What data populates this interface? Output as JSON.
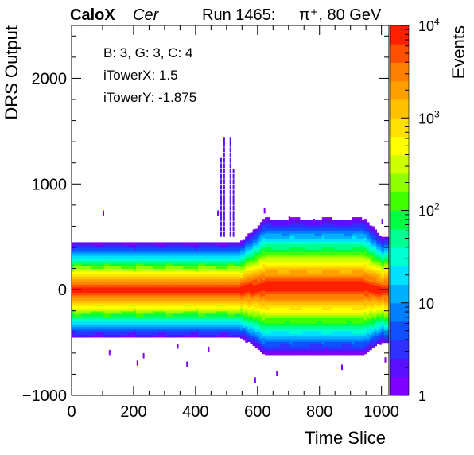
{
  "header": {
    "experiment": "CaloX",
    "channel": "Cer",
    "run": "Run 1465:",
    "beam": "π⁺, 80 GeV"
  },
  "info_box": [
    "B: 3, G: 3, C: 4",
    "iTowerX: 1.5",
    "iTowerY: -1.875"
  ],
  "chart_data": {
    "type": "heatmap",
    "xlabel": "Time Slice",
    "ylabel": "DRS Output",
    "zlabel": "Events",
    "xlim": [
      0,
      1024
    ],
    "ylim": [
      -1000,
      2500
    ],
    "zlim": [
      1,
      10000
    ],
    "z_scale": "log",
    "x_ticks": [
      "0",
      "200",
      "400",
      "600",
      "800",
      "1000"
    ],
    "y_ticks": [
      "−1000",
      "0",
      "1000",
      "2000"
    ],
    "z_ticks": [
      {
        "base": "1",
        "exp": ""
      },
      {
        "base": "10",
        "exp": ""
      },
      {
        "base": "10",
        "exp": "2"
      },
      {
        "base": "10",
        "exp": "3"
      },
      {
        "base": "10",
        "exp": "4"
      }
    ],
    "colormap": [
      "#8000ff",
      "#5a10ff",
      "#3030ff",
      "#1050ff",
      "#0080ff",
      "#00b0ff",
      "#00e0ff",
      "#00ffd0",
      "#00ff90",
      "#00ff40",
      "#40ff00",
      "#90ff00",
      "#d0ff00",
      "#ffff00",
      "#ffe000",
      "#ffc000",
      "#ffa000",
      "#ff8000",
      "#ff5000",
      "#ff2000"
    ],
    "band_profile": {
      "description_free": true,
      "segments": [
        {
          "x_range": [
            0,
            555
          ],
          "center": 0,
          "half_width_outer": 450
        },
        {
          "x_range": [
            555,
            600
          ],
          "center": 0,
          "half_width_outer": 550
        },
        {
          "x_range": [
            600,
            950
          ],
          "center": 30,
          "half_width_outer": 640
        },
        {
          "x_range": [
            950,
            1024
          ],
          "center": 0,
          "half_width_outer": 500
        }
      ],
      "spikes": [
        {
          "x": 490,
          "y_top": 1450
        },
        {
          "x": 510,
          "y_top": 1450
        },
        {
          "x": 520,
          "y_top": 1150
        },
        {
          "x": 480,
          "y_top": 1250
        }
      ]
    }
  }
}
